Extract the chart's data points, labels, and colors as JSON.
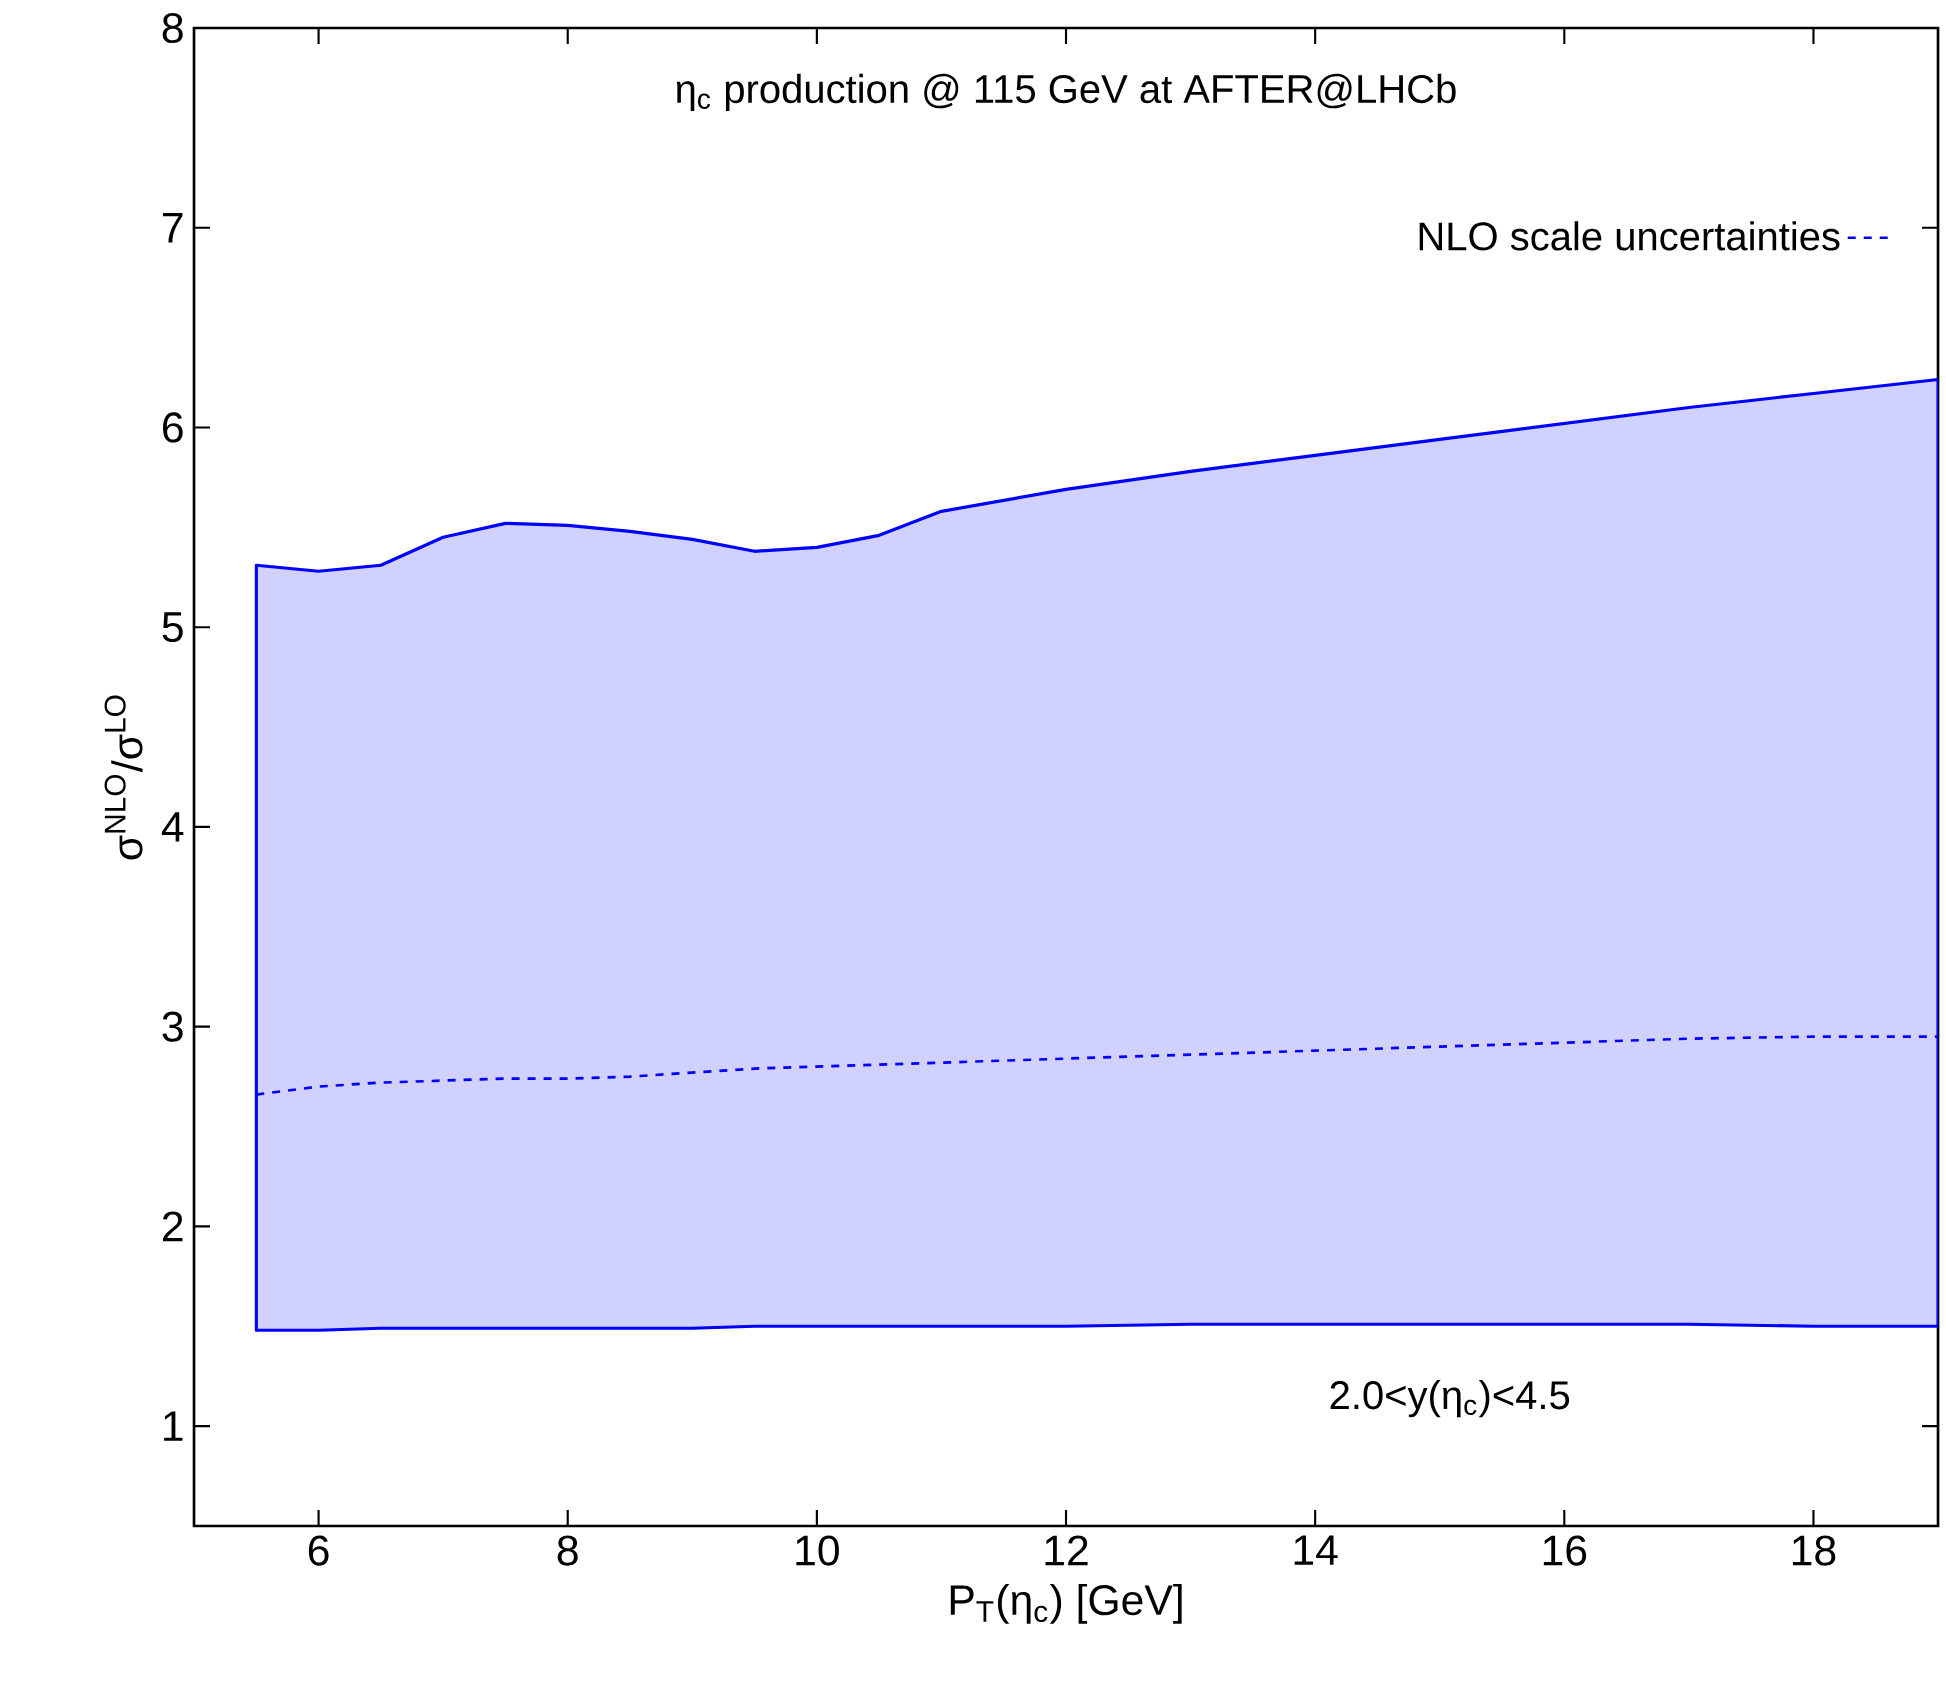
{
  "chart_data": {
    "type": "line",
    "title": "η$_{c}$ production @ 115 GeV at AFTER@LHCb",
    "xlabel": "P$_{T}$(η$_{c}$) [GeV]",
    "ylabel": "σ$^{NLO}$/σ$^{LO}$",
    "annotations": [
      "2.0<y(η$_{c}$)<4.5"
    ],
    "xlim": [
      5,
      19
    ],
    "ylim": [
      0.5,
      8
    ],
    "xticks": [
      6,
      8,
      10,
      12,
      14,
      16,
      18
    ],
    "yticks": [
      1,
      2,
      3,
      4,
      5,
      6,
      7,
      8
    ],
    "legend": "top right",
    "series": [
      {
        "name": "NLO scale uncertainties",
        "color": "#0000ff",
        "line_style": "dashed",
        "x": [
          5.5,
          6,
          6.5,
          7,
          7.5,
          8,
          8.5,
          9,
          9.5,
          10,
          10.5,
          11,
          12,
          13,
          14,
          15,
          16,
          17,
          18,
          19
        ],
        "values": [
          2.66,
          2.7,
          2.72,
          2.73,
          2.74,
          2.74,
          2.75,
          2.77,
          2.79,
          2.8,
          2.81,
          2.82,
          2.84,
          2.86,
          2.88,
          2.9,
          2.92,
          2.94,
          2.95,
          2.95
        ],
        "lower": [
          1.48,
          1.48,
          1.49,
          1.49,
          1.49,
          1.49,
          1.49,
          1.49,
          1.5,
          1.5,
          1.5,
          1.5,
          1.5,
          1.51,
          1.51,
          1.51,
          1.51,
          1.51,
          1.5,
          1.5
        ],
        "upper": [
          5.31,
          5.28,
          5.31,
          5.45,
          5.52,
          5.51,
          5.48,
          5.44,
          5.38,
          5.4,
          5.46,
          5.58,
          5.69,
          5.78,
          5.86,
          5.94,
          6.02,
          6.1,
          6.17,
          6.24
        ]
      }
    ]
  }
}
